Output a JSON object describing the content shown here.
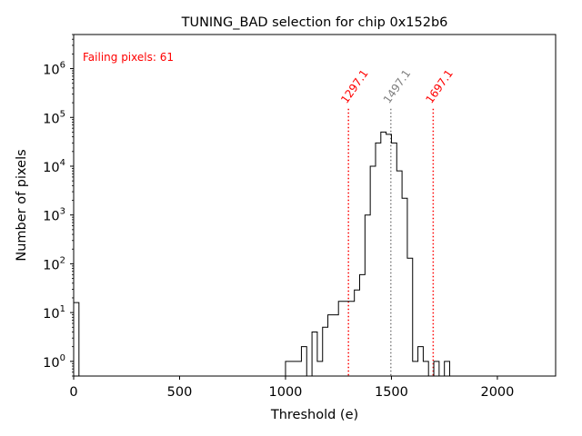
{
  "chart_data": {
    "type": "histogram-step",
    "title": "TUNING_BAD selection for chip 0x152b6",
    "xlabel": "Threshold (e)",
    "ylabel": "Number of pixels",
    "y_scale": "log",
    "xlim": [
      0,
      2275
    ],
    "ylim": [
      0.5,
      5000000
    ],
    "x_ticks": [
      0,
      500,
      1000,
      1500,
      2000
    ],
    "x_tick_labels": [
      "0",
      "500",
      "1000",
      "1500",
      "2000"
    ],
    "y_ticks": [
      1,
      10,
      100,
      1000,
      10000,
      100000,
      1000000
    ],
    "y_tick_labels": [
      {
        "base": "10",
        "exp": "0"
      },
      {
        "base": "10",
        "exp": "1"
      },
      {
        "base": "10",
        "exp": "2"
      },
      {
        "base": "10",
        "exp": "3"
      },
      {
        "base": "10",
        "exp": "4"
      },
      {
        "base": "10",
        "exp": "5"
      },
      {
        "base": "10",
        "exp": "6"
      }
    ],
    "bin_width": 25,
    "bins": [
      {
        "x": 0,
        "count": 16
      },
      {
        "x": 25,
        "count": 0
      },
      {
        "x": 1000,
        "count": 1
      },
      {
        "x": 1025,
        "count": 1
      },
      {
        "x": 1050,
        "count": 1
      },
      {
        "x": 1075,
        "count": 2
      },
      {
        "x": 1100,
        "count": 0
      },
      {
        "x": 1125,
        "count": 4
      },
      {
        "x": 1150,
        "count": 1
      },
      {
        "x": 1175,
        "count": 5
      },
      {
        "x": 1200,
        "count": 9
      },
      {
        "x": 1225,
        "count": 9
      },
      {
        "x": 1250,
        "count": 17
      },
      {
        "x": 1275,
        "count": 17
      },
      {
        "x": 1300,
        "count": 17
      },
      {
        "x": 1325,
        "count": 29
      },
      {
        "x": 1350,
        "count": 60
      },
      {
        "x": 1375,
        "count": 1000
      },
      {
        "x": 1400,
        "count": 10000
      },
      {
        "x": 1425,
        "count": 30000
      },
      {
        "x": 1450,
        "count": 50000
      },
      {
        "x": 1475,
        "count": 45000
      },
      {
        "x": 1500,
        "count": 30000
      },
      {
        "x": 1525,
        "count": 8000
      },
      {
        "x": 1550,
        "count": 2200
      },
      {
        "x": 1575,
        "count": 130
      },
      {
        "x": 1600,
        "count": 1
      },
      {
        "x": 1625,
        "count": 2
      },
      {
        "x": 1650,
        "count": 1
      },
      {
        "x": 1675,
        "count": 0
      },
      {
        "x": 1700,
        "count": 1
      },
      {
        "x": 1725,
        "count": 0
      },
      {
        "x": 1750,
        "count": 1
      },
      {
        "x": 1775,
        "count": 0
      }
    ],
    "vlines": [
      {
        "x": 1297.1,
        "label": "1297.1",
        "color": "#ff0000"
      },
      {
        "x": 1497.1,
        "label": "1497.1",
        "color": "#808080"
      },
      {
        "x": 1697.1,
        "label": "1697.1",
        "color": "#ff0000"
      }
    ],
    "vline_label_y": 150000,
    "annotation": {
      "text": "Failing pixels: 61",
      "color": "#ff0000"
    },
    "colors": {
      "line": "#000000",
      "axis": "#000000",
      "background": "#ffffff"
    }
  }
}
